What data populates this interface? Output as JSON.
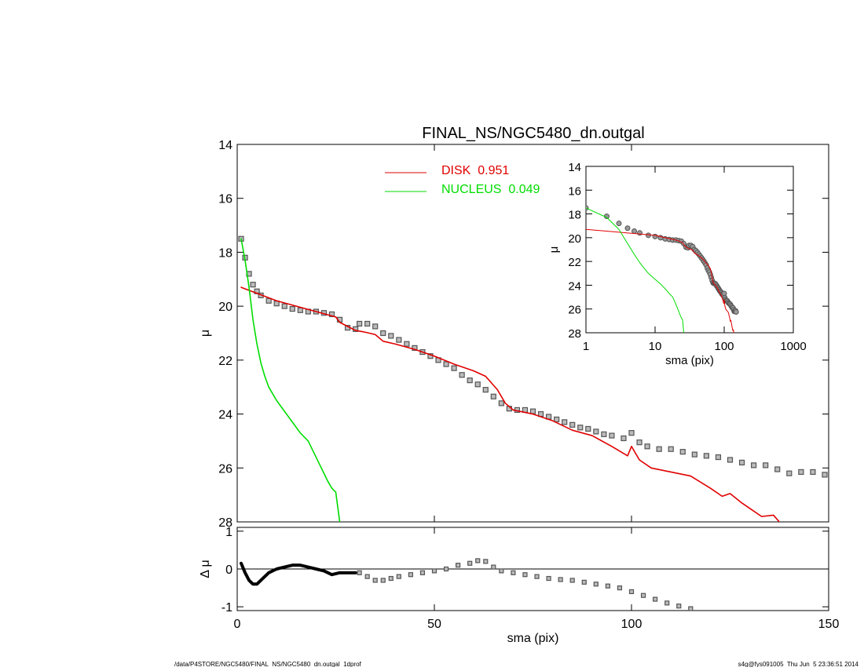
{
  "chart_data": [
    {
      "type": "line",
      "title": "FINAL_NS/NGC5480_dn.outgal",
      "ylabel": "μ",
      "xlim": [
        0,
        150
      ],
      "xticks": [
        0,
        50,
        100,
        150
      ],
      "ylim": [
        28,
        14
      ],
      "yticks": [
        14,
        16,
        18,
        20,
        22,
        24,
        26,
        28
      ],
      "series": [
        {
          "style": "markers",
          "color": "#555555",
          "x": [
            1,
            2,
            3,
            4,
            5,
            6,
            8,
            10,
            12,
            14,
            16,
            18,
            20,
            22,
            24,
            26,
            28,
            30,
            31,
            33,
            35,
            37,
            39,
            41,
            43,
            45,
            47,
            49,
            51,
            53,
            55,
            57,
            59,
            61,
            63,
            65,
            67,
            69,
            71,
            73,
            75,
            77,
            79,
            81,
            83,
            85,
            87,
            89,
            91,
            93,
            95,
            98,
            100,
            102,
            104,
            107,
            110,
            113,
            116,
            119,
            122,
            125,
            128,
            131,
            134,
            137,
            140,
            143,
            146,
            149
          ],
          "values": [
            17.5,
            18.2,
            18.8,
            19.2,
            19.45,
            19.6,
            19.8,
            19.9,
            20.0,
            20.1,
            20.15,
            20.2,
            20.2,
            20.25,
            20.3,
            20.5,
            20.8,
            20.85,
            20.65,
            20.65,
            20.75,
            21.0,
            21.1,
            21.25,
            21.4,
            21.55,
            21.7,
            21.85,
            22.0,
            22.15,
            22.3,
            22.55,
            22.75,
            22.9,
            23.1,
            23.35,
            23.6,
            23.8,
            23.85,
            23.85,
            23.9,
            24.0,
            24.1,
            24.2,
            24.3,
            24.4,
            24.5,
            24.55,
            24.65,
            24.75,
            24.8,
            24.9,
            24.7,
            25.05,
            25.2,
            25.3,
            25.3,
            25.4,
            25.5,
            25.55,
            25.6,
            25.7,
            25.8,
            25.9,
            25.9,
            26.05,
            26.2,
            26.15,
            26.15,
            26.25
          ]
        },
        {
          "style": "line",
          "name": "DISK  0.951",
          "color": "#e00000",
          "x": [
            1,
            10,
            20,
            25,
            26,
            30,
            32,
            35,
            37,
            40,
            45,
            50,
            55,
            60,
            63,
            66,
            68,
            70,
            75,
            80,
            85,
            90,
            95,
            99,
            100,
            102,
            105,
            110,
            115,
            120,
            123,
            125,
            128,
            130,
            133,
            136,
            137.5
          ],
          "values": [
            19.3,
            19.8,
            20.2,
            20.4,
            20.6,
            20.9,
            20.95,
            21.05,
            21.3,
            21.4,
            21.6,
            21.85,
            22.15,
            22.4,
            22.6,
            23.1,
            23.6,
            23.85,
            24.0,
            24.25,
            24.6,
            24.8,
            25.2,
            25.55,
            25.2,
            25.7,
            26.0,
            26.15,
            26.3,
            26.75,
            27.05,
            26.95,
            27.3,
            27.5,
            27.8,
            27.75,
            28.0
          ]
        },
        {
          "style": "line",
          "name": "NUCLEUS  0.049",
          "color": "#00dd00",
          "x": [
            1,
            2,
            3,
            4,
            5,
            6,
            7,
            8,
            10,
            12,
            14,
            16,
            18,
            20,
            22,
            23,
            24,
            25,
            26
          ],
          "values": [
            17.5,
            18.3,
            19.3,
            20.5,
            21.4,
            22.1,
            22.6,
            23.0,
            23.5,
            23.9,
            24.3,
            24.7,
            25.0,
            25.6,
            26.2,
            26.5,
            26.75,
            26.9,
            28.0
          ]
        }
      ]
    },
    {
      "type": "line",
      "ylabel": "Δ μ",
      "xlabel": "sma (pix)",
      "xlim": [
        0,
        150
      ],
      "xticks": [
        0,
        50,
        100,
        150
      ],
      "ylim": [
        -1.1,
        1.1
      ],
      "yticks": [
        -1,
        0,
        1
      ],
      "series": [
        {
          "style": "line",
          "color": "#000000",
          "x": [
            1,
            2,
            3,
            4,
            5,
            6,
            8,
            10,
            12,
            14,
            16,
            18,
            20,
            22,
            24,
            26,
            28,
            30
          ],
          "values": [
            0.15,
            -0.1,
            -0.3,
            -0.4,
            -0.4,
            -0.3,
            -0.1,
            0.0,
            0.05,
            0.1,
            0.1,
            0.05,
            0.0,
            -0.05,
            -0.15,
            -0.1,
            -0.1,
            -0.1
          ]
        },
        {
          "style": "markers",
          "color": "#555555",
          "x": [
            31,
            33,
            35,
            37,
            39,
            41,
            44,
            47,
            50,
            53,
            56,
            59,
            61,
            63,
            65,
            67,
            70,
            73,
            76,
            79,
            82,
            85,
            88,
            91,
            94,
            97,
            100,
            103,
            106,
            109,
            112,
            115
          ],
          "values": [
            -0.1,
            -0.2,
            -0.3,
            -0.3,
            -0.25,
            -0.2,
            -0.15,
            -0.1,
            -0.05,
            0.0,
            0.1,
            0.15,
            0.22,
            0.2,
            0.05,
            -0.05,
            -0.1,
            -0.15,
            -0.2,
            -0.25,
            -0.28,
            -0.3,
            -0.35,
            -0.4,
            -0.45,
            -0.5,
            -0.6,
            -0.7,
            -0.8,
            -0.9,
            -0.98,
            -1.05
          ]
        }
      ]
    },
    {
      "type": "line",
      "ylabel": "μ",
      "xlabel": "sma (pix)",
      "log_x": true,
      "xlim": [
        1,
        1000
      ],
      "xticks": [
        1,
        10,
        100,
        1000
      ],
      "ylim": [
        28,
        14
      ],
      "yticks": [
        14,
        16,
        18,
        20,
        22,
        24,
        26,
        28
      ]
    }
  ],
  "footer": {
    "left": "/data/P4STORE/NGC5480/FINAL_NS/NGC5480_dn.outgal_1dprof",
    "right": "s4g@fys091005  Thu Jun  5 23:36:51 2014"
  }
}
